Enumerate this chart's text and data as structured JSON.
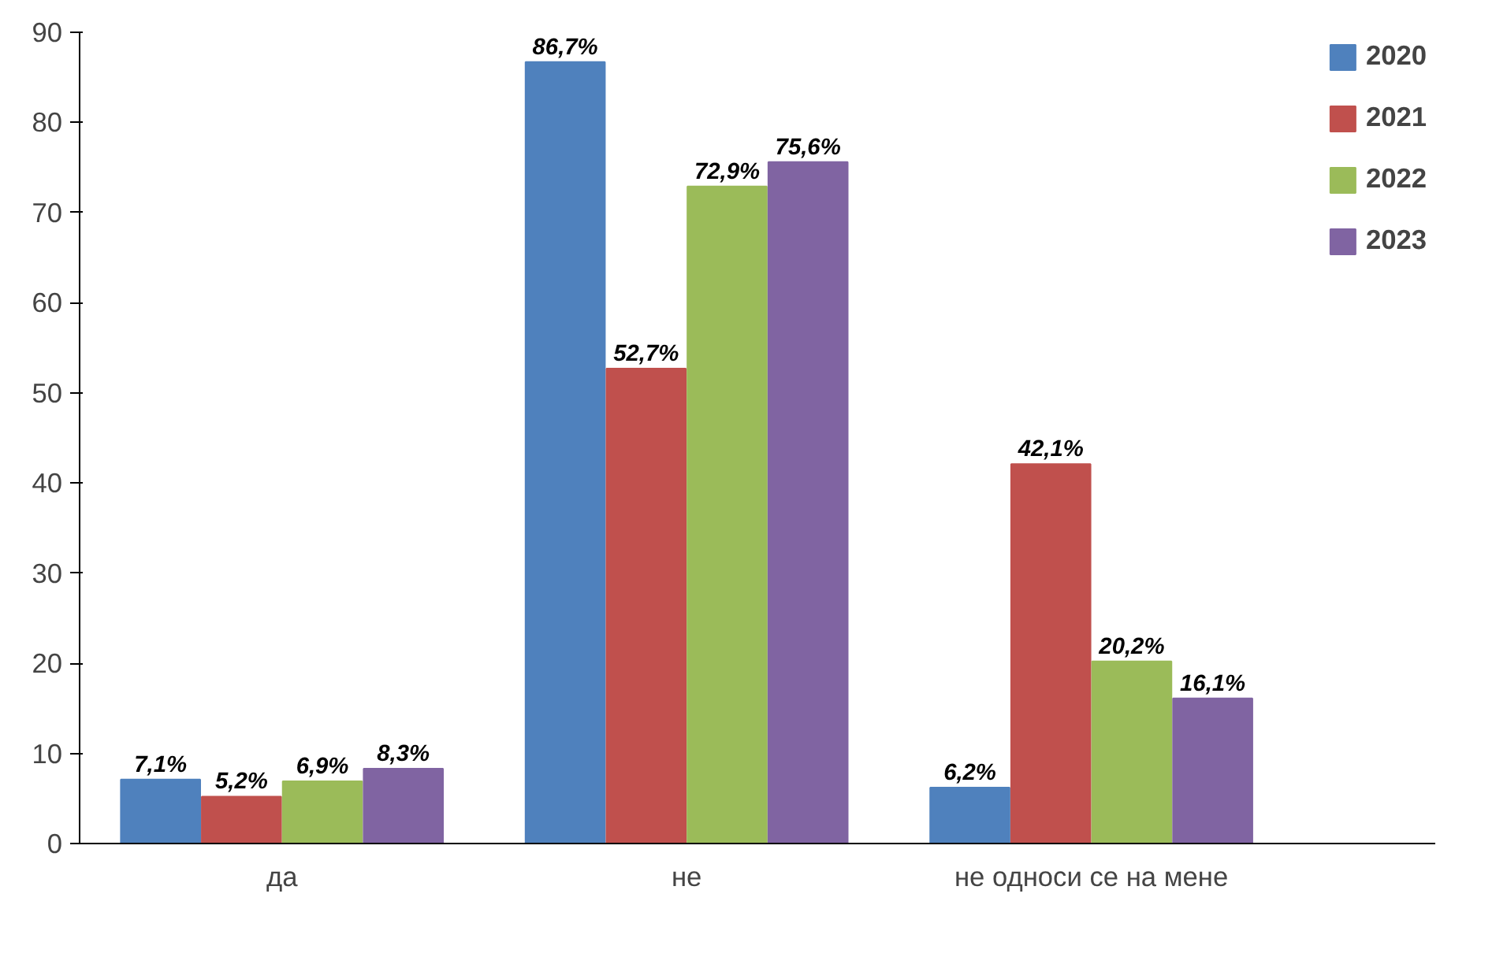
{
  "chart_data": {
    "type": "bar",
    "categories": [
      "да",
      "не",
      "не односи се на мене"
    ],
    "series": [
      {
        "name": "2020",
        "color": "#4f81bd",
        "values": [
          7.1,
          86.7,
          6.2
        ],
        "value_labels": [
          "7,1%",
          "86,7%",
          "6,2%"
        ]
      },
      {
        "name": "2021",
        "color": "#c0504d",
        "values": [
          5.2,
          52.7,
          42.1
        ],
        "value_labels": [
          "5,2%",
          "52,7%",
          "42,1%"
        ]
      },
      {
        "name": "2022",
        "color": "#9bbb59",
        "values": [
          6.9,
          72.9,
          20.2
        ],
        "value_labels": [
          "6,9%",
          "72,9%",
          "20,2%"
        ]
      },
      {
        "name": "2023",
        "color": "#8064a2",
        "values": [
          8.3,
          75.6,
          16.1
        ],
        "value_labels": [
          "8,3%",
          "75,6%",
          "16,1%"
        ]
      }
    ],
    "ylim": [
      0,
      90
    ],
    "yticks": [
      0,
      10,
      20,
      30,
      40,
      50,
      60,
      70,
      80,
      90
    ],
    "grid": false,
    "legend": "top right"
  }
}
